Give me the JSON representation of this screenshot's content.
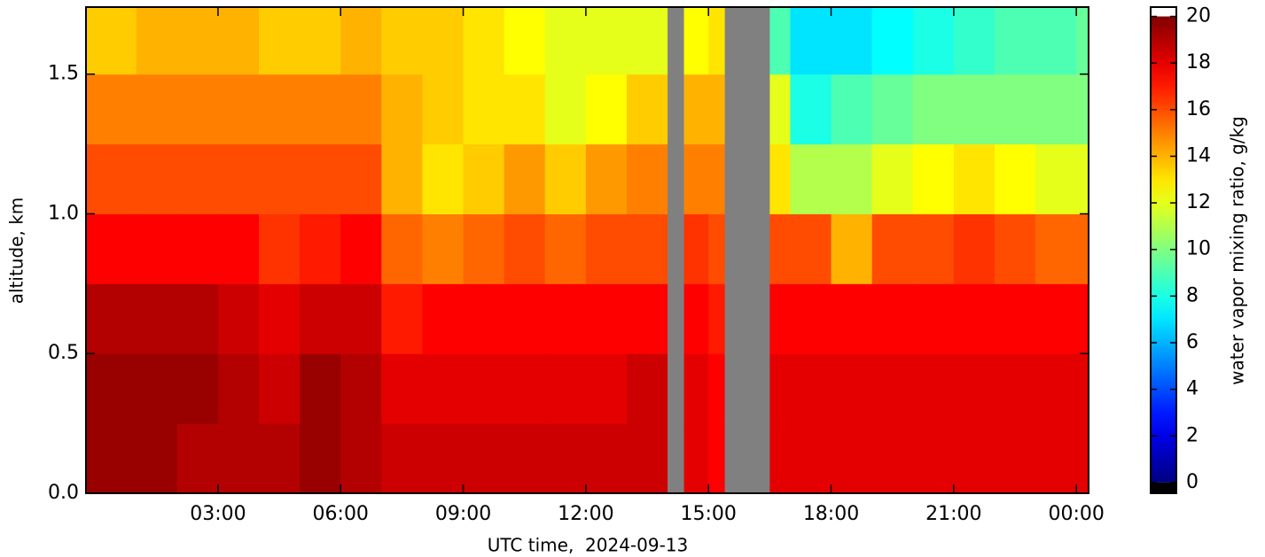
{
  "chart_data": {
    "type": "heatmap",
    "x_label": "UTC time,  2024-09-13",
    "y_label": "altitude, km",
    "colorbar_label": "water vapor mixing ratio, g/kg",
    "colormap": "jet",
    "missing_color": "#808080",
    "xlim": [
      -0.23,
      24.3
    ],
    "ylim": [
      0,
      1.74
    ],
    "xticks": [
      {
        "value": 3,
        "label": "03:00"
      },
      {
        "value": 6,
        "label": "06:00"
      },
      {
        "value": 9,
        "label": "09:00"
      },
      {
        "value": 12,
        "label": "12:00"
      },
      {
        "value": 15,
        "label": "15:00"
      },
      {
        "value": 18,
        "label": "18:00"
      },
      {
        "value": 21,
        "label": "21:00"
      },
      {
        "value": 24,
        "label": "00:00"
      }
    ],
    "yticks": [
      {
        "value": 0,
        "label": "0.0"
      },
      0.5,
      {
        "value": 1,
        "label": "1.0"
      },
      1.5
    ],
    "clim": [
      0,
      20
    ],
    "colorbar_lim": [
      -0.46,
      20.4
    ],
    "colorbar_ticks": [
      0,
      2,
      4,
      6,
      8,
      10,
      12,
      14,
      16,
      18,
      20
    ],
    "x_edges": [
      -0.23,
      1,
      2,
      3,
      4,
      5,
      6,
      7,
      8,
      9,
      10,
      11,
      12,
      13,
      14,
      14.4,
      15,
      15.4,
      16.5,
      17,
      18,
      19,
      20,
      21,
      22,
      23,
      24,
      24.3
    ],
    "y_edges": [
      0,
      0.25,
      0.5,
      0.75,
      1.0,
      1.25,
      1.5,
      1.74
    ],
    "values": [
      [
        19.5,
        19.5,
        19,
        17.5,
        16,
        15,
        13.5
      ],
      [
        19.5,
        19.5,
        19,
        17.5,
        16,
        15,
        14
      ],
      [
        19,
        19.5,
        19,
        17.5,
        16,
        15,
        14
      ],
      [
        19,
        19,
        18.5,
        17.5,
        16,
        15,
        14
      ],
      [
        19,
        18.5,
        18,
        16.5,
        16,
        15,
        13.5
      ],
      [
        19.5,
        19.5,
        18.5,
        17,
        16,
        15,
        13.5
      ],
      [
        19,
        19,
        18.5,
        17.5,
        16,
        15,
        14
      ],
      [
        18.5,
        18,
        17,
        15.5,
        14,
        14,
        13.5
      ],
      [
        18.5,
        18,
        17.5,
        15,
        13,
        13.5,
        13.5
      ],
      [
        18.5,
        18,
        17.5,
        15.5,
        13.5,
        13,
        13
      ],
      [
        18.5,
        18,
        17.5,
        16,
        14.5,
        13,
        12.5
      ],
      [
        18.5,
        18,
        17.5,
        15.5,
        13.5,
        12,
        12
      ],
      [
        18.5,
        18,
        17.5,
        16,
        14.5,
        12.5,
        12
      ],
      [
        18.5,
        18.5,
        17.5,
        16,
        15,
        13.5,
        12
      ],
      [
        null,
        null,
        null,
        null,
        null,
        null,
        null
      ],
      [
        18,
        18,
        17.5,
        16.5,
        15,
        14,
        12.5
      ],
      [
        17.5,
        17.5,
        17,
        16,
        15,
        14,
        13
      ],
      [
        null,
        null,
        null,
        null,
        null,
        null,
        null
      ],
      [
        18,
        18,
        17.5,
        16,
        13,
        12,
        9
      ],
      [
        18,
        18,
        17.5,
        16,
        11,
        8,
        7
      ],
      [
        18,
        18,
        17.5,
        14,
        11,
        9,
        7
      ],
      [
        18,
        18,
        17.5,
        16,
        12,
        9.5,
        7.5
      ],
      [
        18,
        18,
        17.5,
        16,
        12.5,
        10,
        8
      ],
      [
        18,
        18,
        17.5,
        16.5,
        13,
        10,
        8.5
      ],
      [
        18,
        18,
        17.5,
        16,
        12.5,
        10,
        9
      ],
      [
        18,
        18,
        17.5,
        15.5,
        12,
        10,
        9
      ],
      [
        18,
        18,
        17.5,
        15.5,
        12,
        10,
        9.5
      ]
    ]
  }
}
